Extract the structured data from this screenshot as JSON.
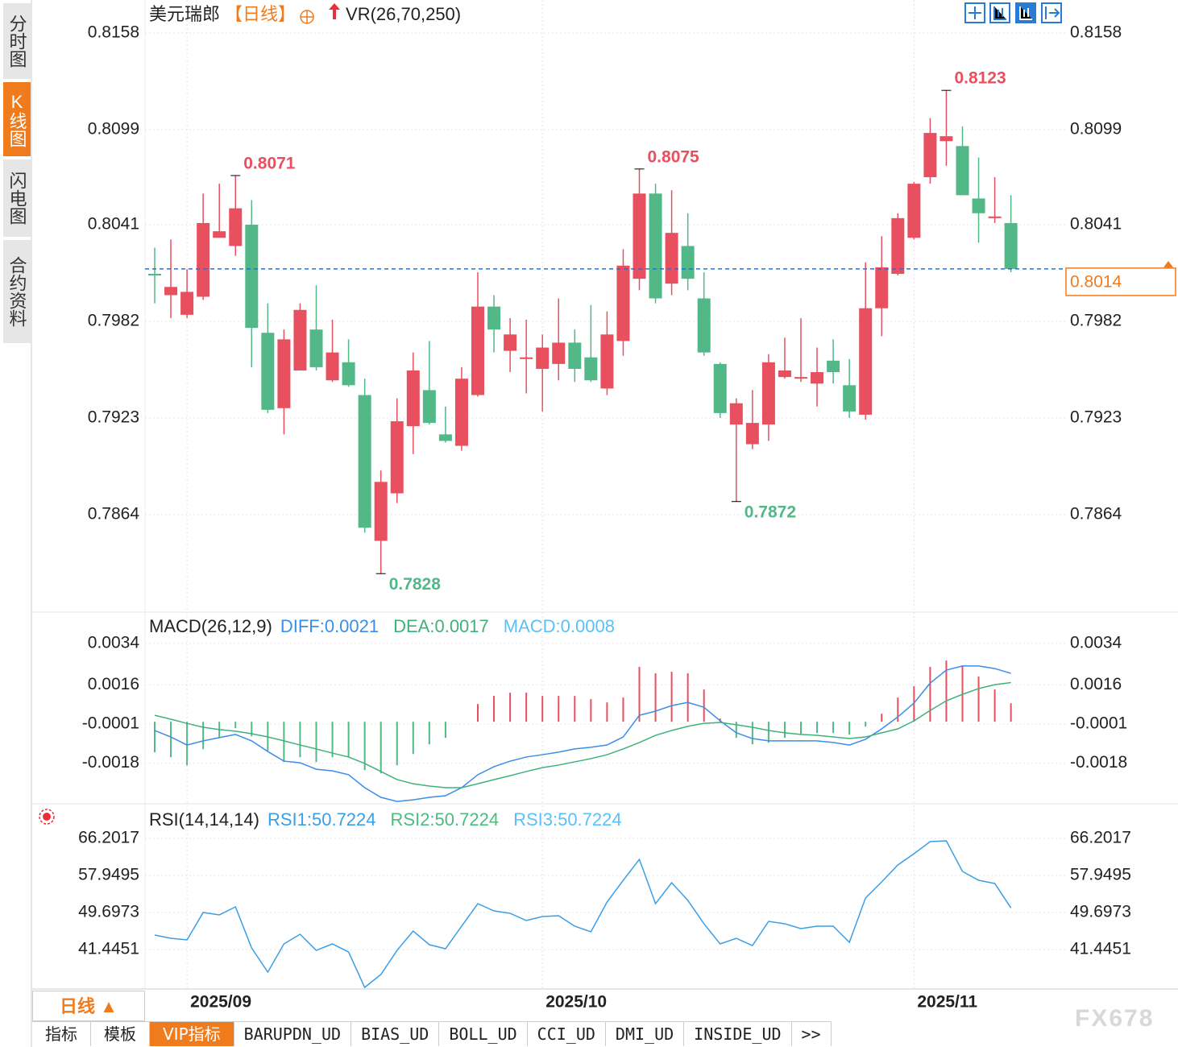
{
  "sidebar": [
    "分时图",
    "K线图",
    "闪电图",
    "合约资料"
  ],
  "period_selector": "日线 ▲",
  "tabs": [
    "指标",
    "模板",
    "VIP指标",
    "BARUPDN_UD",
    "BIAS_UD",
    "BOLL_UD",
    "CCI_UD",
    "DMI_UD",
    "INSIDE_UD",
    ">>"
  ],
  "watermark": "FX678",
  "chart_data": [
    {
      "type": "candlestick",
      "title": "美元瑞郎",
      "period": "【日线】",
      "indicator": "VR(26,70,250)",
      "categories": [
        null,
        null,
        "2025/09",
        null,
        null,
        null,
        null,
        null,
        null,
        null,
        null,
        null,
        null,
        null,
        null,
        null,
        null,
        null,
        null,
        null,
        null,
        null,
        null,
        null,
        "2025/10",
        null,
        null,
        null,
        null,
        null,
        null,
        null,
        null,
        null,
        null,
        null,
        null,
        null,
        null,
        null,
        null,
        null,
        null,
        null,
        null,
        null,
        null,
        "2025/11",
        null,
        null,
        null,
        null,
        null,
        null
      ],
      "open": [
        0.8011,
        0.7998,
        0.7986,
        0.7997,
        0.8033,
        0.8028,
        0.8041,
        0.7975,
        0.7929,
        0.7952,
        0.7977,
        0.7946,
        0.7957,
        0.7937,
        0.7848,
        0.7877,
        0.7918,
        0.794,
        0.7913,
        0.7906,
        0.7937,
        0.7991,
        0.7964,
        0.7959,
        0.7953,
        0.7956,
        0.7969,
        0.796,
        0.7941,
        0.797,
        0.8008,
        0.806,
        0.8005,
        0.8028,
        0.7996,
        0.7956,
        0.7919,
        0.7907,
        0.7919,
        0.7948,
        0.7947,
        0.7944,
        0.7958,
        0.7943,
        0.7925,
        0.799,
        0.8011,
        0.8033,
        0.807,
        0.8092,
        0.8089,
        0.8057,
        0.8045,
        0.8042
      ],
      "high": [
        0.8027,
        0.8032,
        0.8014,
        0.806,
        0.8066,
        0.8071,
        0.8056,
        0.7993,
        0.7977,
        0.7993,
        0.8004,
        0.7983,
        0.7971,
        0.7947,
        0.7891,
        0.7935,
        0.7963,
        0.797,
        0.793,
        0.7954,
        0.8012,
        0.7998,
        0.7984,
        0.7983,
        0.7974,
        0.7996,
        0.7977,
        0.7992,
        0.7988,
        0.8026,
        0.8075,
        0.8066,
        0.8062,
        0.8048,
        0.8012,
        0.7957,
        0.7935,
        0.794,
        0.7962,
        0.7972,
        0.7984,
        0.7966,
        0.7971,
        0.7959,
        0.8018,
        0.8034,
        0.8048,
        0.8067,
        0.8106,
        0.8123,
        0.8101,
        0.8082,
        0.807,
        0.8059
      ],
      "low": [
        0.7993,
        0.7984,
        0.7984,
        0.7995,
        0.8033,
        0.8022,
        0.7954,
        0.7926,
        0.7913,
        0.7952,
        0.7952,
        0.7945,
        0.7942,
        0.7853,
        0.7828,
        0.7871,
        0.7901,
        0.7919,
        0.7908,
        0.7903,
        0.7936,
        0.7963,
        0.7951,
        0.7938,
        0.7927,
        0.7946,
        0.7945,
        0.7945,
        0.7937,
        0.7961,
        0.8001,
        0.7993,
        0.7998,
        0.8001,
        0.7961,
        0.7923,
        0.7872,
        0.7904,
        0.7909,
        0.7947,
        0.7945,
        0.793,
        0.7944,
        0.7923,
        0.7922,
        0.7973,
        0.801,
        0.8032,
        0.8066,
        0.8077,
        0.8059,
        0.803,
        0.8042,
        0.8012
      ],
      "close": [
        0.801,
        0.8003,
        0.8,
        0.8042,
        0.8037,
        0.8051,
        0.7978,
        0.7928,
        0.7971,
        0.7989,
        0.7954,
        0.7963,
        0.7943,
        0.7856,
        0.7884,
        0.7921,
        0.7952,
        0.792,
        0.7909,
        0.7947,
        0.7991,
        0.7977,
        0.7974,
        0.796,
        0.7966,
        0.7969,
        0.7953,
        0.7946,
        0.7974,
        0.8016,
        0.806,
        0.7996,
        0.8036,
        0.8008,
        0.7963,
        0.7926,
        0.7932,
        0.792,
        0.7957,
        0.7952,
        0.7948,
        0.7951,
        0.7951,
        0.7927,
        0.799,
        0.8015,
        0.8045,
        0.8066,
        0.8097,
        0.8095,
        0.8059,
        0.8048,
        0.8046,
        0.8014
      ],
      "up_color": "#e8505f",
      "down_color": "#52b887",
      "last_price_color": "#1a73e8",
      "last_price_box_color": "#f07b1d",
      "ylim": [
        0.78055,
        0.81757
      ],
      "yticks": [
        0.8158,
        0.8099,
        0.8041,
        0.7982,
        0.7923,
        0.7864
      ],
      "grid": true
    },
    {
      "type": "macd",
      "title": "MACD(26,12,9)",
      "series": [
        {
          "name": "DIFF:0.0021",
          "color": "#3a8ee6",
          "values": [
            -0.00038,
            -0.00066,
            -0.00101,
            -0.00083,
            -0.00069,
            -0.00055,
            -0.00083,
            -0.00129,
            -0.00171,
            -0.00178,
            -0.00206,
            -0.00213,
            -0.0023,
            -0.00286,
            -0.00328,
            -0.00346,
            -0.00339,
            -0.00328,
            -0.00321,
            -0.00286,
            -0.0023,
            -0.00195,
            -0.00171,
            -0.00153,
            -0.00143,
            -0.00132,
            -0.00118,
            -0.00111,
            -0.00101,
            -0.00066,
            0.00028,
            0.00046,
            0.0007,
            0.00084,
            0.00063,
            4e-05,
            -0.00048,
            -0.00073,
            -0.00083,
            -0.00083,
            -0.00083,
            -0.00083,
            -0.0009,
            -0.00101,
            -0.00076,
            -0.00031,
            0.00021,
            0.00081,
            0.00168,
            0.00224,
            0.00242,
            0.00242,
            0.00231,
            0.0021
          ]
        },
        {
          "name": "DEA:0.0017",
          "color": "#3fb27a",
          "values": [
            0.00028,
            0.00011,
            -7e-05,
            -0.00024,
            -0.00034,
            -0.00041,
            -0.00052,
            -0.00066,
            -0.00083,
            -0.00101,
            -0.00118,
            -0.00136,
            -0.00153,
            -0.00181,
            -0.00216,
            -0.00251,
            -0.00269,
            -0.00279,
            -0.00286,
            -0.00286,
            -0.00269,
            -0.00251,
            -0.00234,
            -0.00216,
            -0.00199,
            -0.00188,
            -0.00174,
            -0.0016,
            -0.00143,
            -0.00118,
            -0.0009,
            -0.00059,
            -0.00038,
            -0.0002,
            -7e-05,
            -3e-05,
            -0.00013,
            -0.00024,
            -0.00038,
            -0.00048,
            -0.00055,
            -0.00059,
            -0.00066,
            -0.00073,
            -0.00066,
            -0.00048,
            -0.00031,
            4e-05,
            0.00049,
            0.00091,
            0.00119,
            0.00144,
            0.00161,
            0.0017
          ]
        },
        {
          "name": "MACD:0.0008",
          "color": "#5bc0f8",
          "up_color": "#e8505f",
          "down_color": "#52b887",
          "values": [
            -0.00133,
            -0.00154,
            -0.00189,
            -0.00119,
            -0.0007,
            -0.00028,
            -0.00063,
            -0.00126,
            -0.00175,
            -0.00154,
            -0.00175,
            -0.00154,
            -0.00154,
            -0.0021,
            -0.00224,
            -0.00189,
            -0.0014,
            -0.00098,
            -0.0007,
            0,
            0.00077,
            0.00112,
            0.00126,
            0.00126,
            0.00112,
            0.00112,
            0.00112,
            0.00098,
            0.00084,
            0.00105,
            0.00238,
            0.0021,
            0.00217,
            0.0021,
            0.0014,
            0.00014,
            -0.0007,
            -0.00098,
            -0.00091,
            -0.0007,
            -0.00056,
            -0.00049,
            -0.00049,
            -0.00056,
            -0.00021,
            0.00035,
            0.00105,
            0.00154,
            0.00238,
            0.00266,
            0.00245,
            0.00196,
            0.0014,
            0.0008
          ]
        }
      ],
      "ylim": [
        -0.00356,
        0.00469
      ],
      "yticks": [
        0.0034,
        0.0016,
        -0.0001,
        -0.0018
      ],
      "grid": true
    },
    {
      "type": "line",
      "title": "RSI(14,14,14)",
      "series": [
        {
          "name": "RSI1:50.7224",
          "color": "#3a9ee6",
          "values": [
            44.67,
            43.95,
            43.6,
            49.7,
            49.16,
            50.95,
            41.8,
            36.42,
            42.7,
            44.85,
            41.26,
            42.7,
            40.9,
            33.01,
            35.88,
            41.26,
            45.57,
            42.52,
            41.62,
            46.65,
            51.67,
            50.05,
            49.52,
            47.9,
            48.8,
            48.98,
            46.65,
            45.39,
            52.03,
            56.87,
            61.54,
            51.67,
            56.33,
            52.39,
            47.19,
            42.7,
            43.95,
            42.34,
            47.72,
            47.19,
            46.11,
            46.65,
            46.65,
            43.06,
            52.93,
            56.51,
            60.28,
            62.79,
            65.48,
            65.65,
            58.85,
            56.87,
            56.16,
            50.7224
          ]
        },
        {
          "name": "RSI2:50.7224",
          "color": "#4cbb7f"
        },
        {
          "name": "RSI3:50.7224",
          "color": "#5bc0f8"
        }
      ],
      "ylim": [
        32.654,
        73.557
      ],
      "yticks": [
        66.2017,
        57.9495,
        49.6973,
        41.4451
      ],
      "grid": true
    }
  ]
}
